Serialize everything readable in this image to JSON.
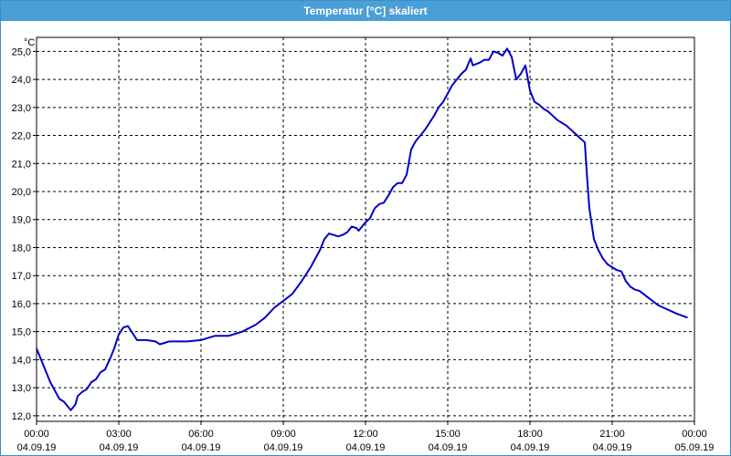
{
  "window": {
    "title": "Temperatur [°C] skaliert"
  },
  "colors": {
    "titlebar": "#4a9fd6",
    "line": "#0000c8",
    "grid": "#000000"
  },
  "chart_data": {
    "type": "line",
    "title": "Temperatur [°C] skaliert",
    "xlabel": "",
    "ylabel": "°C",
    "grid": true,
    "xlim": [
      "04.09.19 00:00",
      "05.09.19 00:00"
    ],
    "ylim": [
      11.8,
      25.5
    ],
    "yticks": [
      "12,0",
      "13,0",
      "14,0",
      "15,0",
      "16,0",
      "17,0",
      "18,0",
      "19,0",
      "20,0",
      "21,0",
      "22,0",
      "23,0",
      "24,0",
      "25,0"
    ],
    "xticks": [
      {
        "time": "00:00",
        "date": "04.09.19"
      },
      {
        "time": "03:00",
        "date": "04.09.19"
      },
      {
        "time": "06:00",
        "date": "04.09.19"
      },
      {
        "time": "09:00",
        "date": "04.09.19"
      },
      {
        "time": "12:00",
        "date": "04.09.19"
      },
      {
        "time": "15:00",
        "date": "04.09.19"
      },
      {
        "time": "18:00",
        "date": "04.09.19"
      },
      {
        "time": "21:00",
        "date": "04.09.19"
      },
      {
        "time": "00:00",
        "date": "05.09.19"
      }
    ],
    "series": [
      {
        "color": "#0000c8",
        "points": [
          [
            "04.09.19 00:00",
            14.4
          ],
          [
            "04.09.19 00:10",
            14.0
          ],
          [
            "04.09.19 00:20",
            13.6
          ],
          [
            "04.09.19 00:30",
            13.2
          ],
          [
            "04.09.19 00:40",
            12.9
          ],
          [
            "04.09.19 00:50",
            12.6
          ],
          [
            "04.09.19 01:00",
            12.5
          ],
          [
            "04.09.19 01:10",
            12.3
          ],
          [
            "04.09.19 01:15",
            12.2
          ],
          [
            "04.09.19 01:20",
            12.3
          ],
          [
            "04.09.19 01:25",
            12.4
          ],
          [
            "04.09.19 01:30",
            12.7
          ],
          [
            "04.09.19 01:40",
            12.85
          ],
          [
            "04.09.19 01:50",
            12.95
          ],
          [
            "04.09.19 02:00",
            13.2
          ],
          [
            "04.09.19 02:10",
            13.3
          ],
          [
            "04.09.19 02:20",
            13.55
          ],
          [
            "04.09.19 02:30",
            13.65
          ],
          [
            "04.09.19 02:40",
            14.0
          ],
          [
            "04.09.19 02:50",
            14.4
          ],
          [
            "04.09.19 03:00",
            14.9
          ],
          [
            "04.09.19 03:10",
            15.15
          ],
          [
            "04.09.19 03:20",
            15.2
          ],
          [
            "04.09.19 03:30",
            14.95
          ],
          [
            "04.09.19 03:40",
            14.7
          ],
          [
            "04.09.19 04:00",
            14.7
          ],
          [
            "04.09.19 04:20",
            14.65
          ],
          [
            "04.09.19 04:30",
            14.55
          ],
          [
            "04.09.19 04:40",
            14.6
          ],
          [
            "04.09.19 04:50",
            14.65
          ],
          [
            "04.09.19 05:00",
            14.65
          ],
          [
            "04.09.19 05:30",
            14.65
          ],
          [
            "04.09.19 06:00",
            14.7
          ],
          [
            "04.09.19 06:20",
            14.8
          ],
          [
            "04.09.19 06:30",
            14.85
          ],
          [
            "04.09.19 07:00",
            14.85
          ],
          [
            "04.09.19 07:30",
            15.0
          ],
          [
            "04.09.19 08:00",
            15.25
          ],
          [
            "04.09.19 08:20",
            15.5
          ],
          [
            "04.09.19 08:40",
            15.85
          ],
          [
            "04.09.19 09:00",
            16.1
          ],
          [
            "04.09.19 09:20",
            16.35
          ],
          [
            "04.09.19 09:40",
            16.8
          ],
          [
            "04.09.19 10:00",
            17.3
          ],
          [
            "04.09.19 10:20",
            17.9
          ],
          [
            "04.09.19 10:30",
            18.3
          ],
          [
            "04.09.19 10:40",
            18.5
          ],
          [
            "04.09.19 10:50",
            18.45
          ],
          [
            "04.09.19 11:00",
            18.4
          ],
          [
            "04.09.19 11:10",
            18.45
          ],
          [
            "04.09.19 11:20",
            18.55
          ],
          [
            "04.09.19 11:30",
            18.75
          ],
          [
            "04.09.19 11:40",
            18.7
          ],
          [
            "04.09.19 11:45",
            18.6
          ],
          [
            "04.09.19 12:00",
            18.9
          ],
          [
            "04.09.19 12:10",
            19.05
          ],
          [
            "04.09.19 12:20",
            19.4
          ],
          [
            "04.09.19 12:30",
            19.55
          ],
          [
            "04.09.19 12:40",
            19.6
          ],
          [
            "04.09.19 12:50",
            19.85
          ],
          [
            "04.09.19 13:00",
            20.15
          ],
          [
            "04.09.19 13:10",
            20.3
          ],
          [
            "04.09.19 13:20",
            20.3
          ],
          [
            "04.09.19 13:30",
            20.6
          ],
          [
            "04.09.19 13:40",
            21.5
          ],
          [
            "04.09.19 13:50",
            21.8
          ],
          [
            "04.09.19 14:00",
            22.0
          ],
          [
            "04.09.19 14:10",
            22.2
          ],
          [
            "04.09.19 14:20",
            22.45
          ],
          [
            "04.09.19 14:30",
            22.7
          ],
          [
            "04.09.19 14:40",
            23.0
          ],
          [
            "04.09.19 14:50",
            23.2
          ],
          [
            "04.09.19 15:00",
            23.5
          ],
          [
            "04.09.19 15:10",
            23.8
          ],
          [
            "04.09.19 15:20",
            24.0
          ],
          [
            "04.09.19 15:30",
            24.2
          ],
          [
            "04.09.19 15:40",
            24.35
          ],
          [
            "04.09.19 15:50",
            24.75
          ],
          [
            "04.09.19 15:55",
            24.5
          ],
          [
            "04.09.19 16:10",
            24.6
          ],
          [
            "04.09.19 16:20",
            24.7
          ],
          [
            "04.09.19 16:30",
            24.7
          ],
          [
            "04.09.19 16:40",
            25.0
          ],
          [
            "04.09.19 16:50",
            24.95
          ],
          [
            "04.09.19 17:00",
            24.85
          ],
          [
            "04.09.19 17:10",
            25.1
          ],
          [
            "04.09.19 17:20",
            24.8
          ],
          [
            "04.09.19 17:30",
            24.0
          ],
          [
            "04.09.19 17:40",
            24.2
          ],
          [
            "04.09.19 17:50",
            24.5
          ],
          [
            "04.09.19 18:00",
            23.6
          ],
          [
            "04.09.19 18:10",
            23.2
          ],
          [
            "04.09.19 18:20",
            23.1
          ],
          [
            "04.09.19 18:30",
            22.95
          ],
          [
            "04.09.19 18:40",
            22.85
          ],
          [
            "04.09.19 18:50",
            22.7
          ],
          [
            "04.09.19 19:00",
            22.55
          ],
          [
            "04.09.19 19:20",
            22.35
          ],
          [
            "04.09.19 19:40",
            22.05
          ],
          [
            "04.09.19 20:00",
            21.75
          ],
          [
            "04.09.19 20:05",
            20.5
          ],
          [
            "04.09.19 20:10",
            19.4
          ],
          [
            "04.09.19 20:20",
            18.3
          ],
          [
            "04.09.19 20:30",
            17.9
          ],
          [
            "04.09.19 20:40",
            17.6
          ],
          [
            "04.09.19 20:50",
            17.4
          ],
          [
            "04.09.19 21:00",
            17.3
          ],
          [
            "04.09.19 21:10",
            17.2
          ],
          [
            "04.09.19 21:20",
            17.15
          ],
          [
            "04.09.19 21:30",
            16.8
          ],
          [
            "04.09.19 21:40",
            16.6
          ],
          [
            "04.09.19 21:50",
            16.5
          ],
          [
            "04.09.19 22:00",
            16.45
          ],
          [
            "04.09.19 22:20",
            16.2
          ],
          [
            "04.09.19 22:40",
            15.95
          ],
          [
            "04.09.19 23:00",
            15.8
          ],
          [
            "04.09.19 23:20",
            15.65
          ],
          [
            "04.09.19 23:45",
            15.5
          ]
        ]
      }
    ]
  }
}
